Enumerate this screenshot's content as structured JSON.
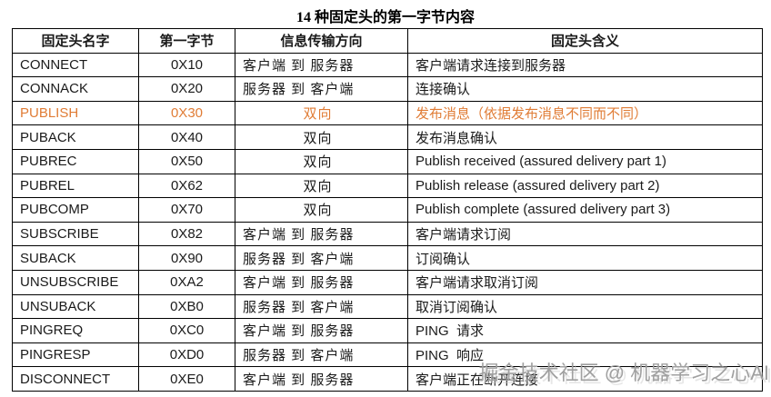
{
  "title": "14 种固定头的第一字节内容",
  "table": {
    "headers": [
      "固定头名字",
      "第一字节",
      "信息传输方向",
      "固定头含义"
    ],
    "rows": [
      {
        "name": "CONNECT",
        "byte": "0X10",
        "direction": "客户端 到 服务器",
        "meaning": "客户端请求连接到服务器",
        "highlight": false
      },
      {
        "name": "CONNACK",
        "byte": "0X20",
        "direction": "服务器 到 客户端",
        "meaning": "连接确认",
        "highlight": false
      },
      {
        "name": "PUBLISH",
        "byte": "0X30",
        "direction": "双向",
        "meaning": "发布消息（依据发布消息不同而不同）",
        "highlight": true
      },
      {
        "name": "PUBACK",
        "byte": "0X40",
        "direction": "双向",
        "meaning": "发布消息确认",
        "highlight": false
      },
      {
        "name": "PUBREC",
        "byte": "0X50",
        "direction": "双向",
        "meaning": "Publish received (assured delivery part 1)",
        "highlight": false
      },
      {
        "name": "PUBREL",
        "byte": "0X62",
        "direction": "双向",
        "meaning": "Publish release (assured delivery part 2)",
        "highlight": false
      },
      {
        "name": "PUBCOMP",
        "byte": "0X70",
        "direction": "双向",
        "meaning": "Publish complete (assured delivery part 3)",
        "highlight": false
      },
      {
        "name": "SUBSCRIBE",
        "byte": "0X82",
        "direction": "客户端 到 服务器",
        "meaning": "客户端请求订阅",
        "highlight": false
      },
      {
        "name": "SUBACK",
        "byte": "0X90",
        "direction": "服务器 到 客户端",
        "meaning": "订阅确认",
        "highlight": false
      },
      {
        "name": "UNSUBSCRIBE",
        "byte": "0XA2",
        "direction": "客户端 到 服务器",
        "meaning": "客户端请求取消订阅",
        "highlight": false
      },
      {
        "name": "UNSUBACK",
        "byte": "0XB0",
        "direction": "服务器 到 客户端",
        "meaning": "取消订阅确认",
        "highlight": false
      },
      {
        "name": "PINGREQ",
        "byte": "0XC0",
        "direction": "客户端 到 服务器",
        "meaning": "PING  请求",
        "highlight": false
      },
      {
        "name": "PINGRESP",
        "byte": "0XD0",
        "direction": "服务器 到 客户端",
        "meaning": "PING  响应",
        "highlight": false
      },
      {
        "name": "DISCONNECT",
        "byte": "0XE0",
        "direction": "客户端 到 服务器",
        "meaning": "客户端正在断开连接",
        "highlight": false
      }
    ],
    "bidirectional_label": "双向"
  },
  "colors": {
    "highlight": "#E07C35",
    "border": "#000000",
    "text": "#1A1A1A",
    "watermark": "#A0A0A0"
  },
  "watermark": {
    "text": "掘金技术社区 @ 机器学习之心AI"
  }
}
